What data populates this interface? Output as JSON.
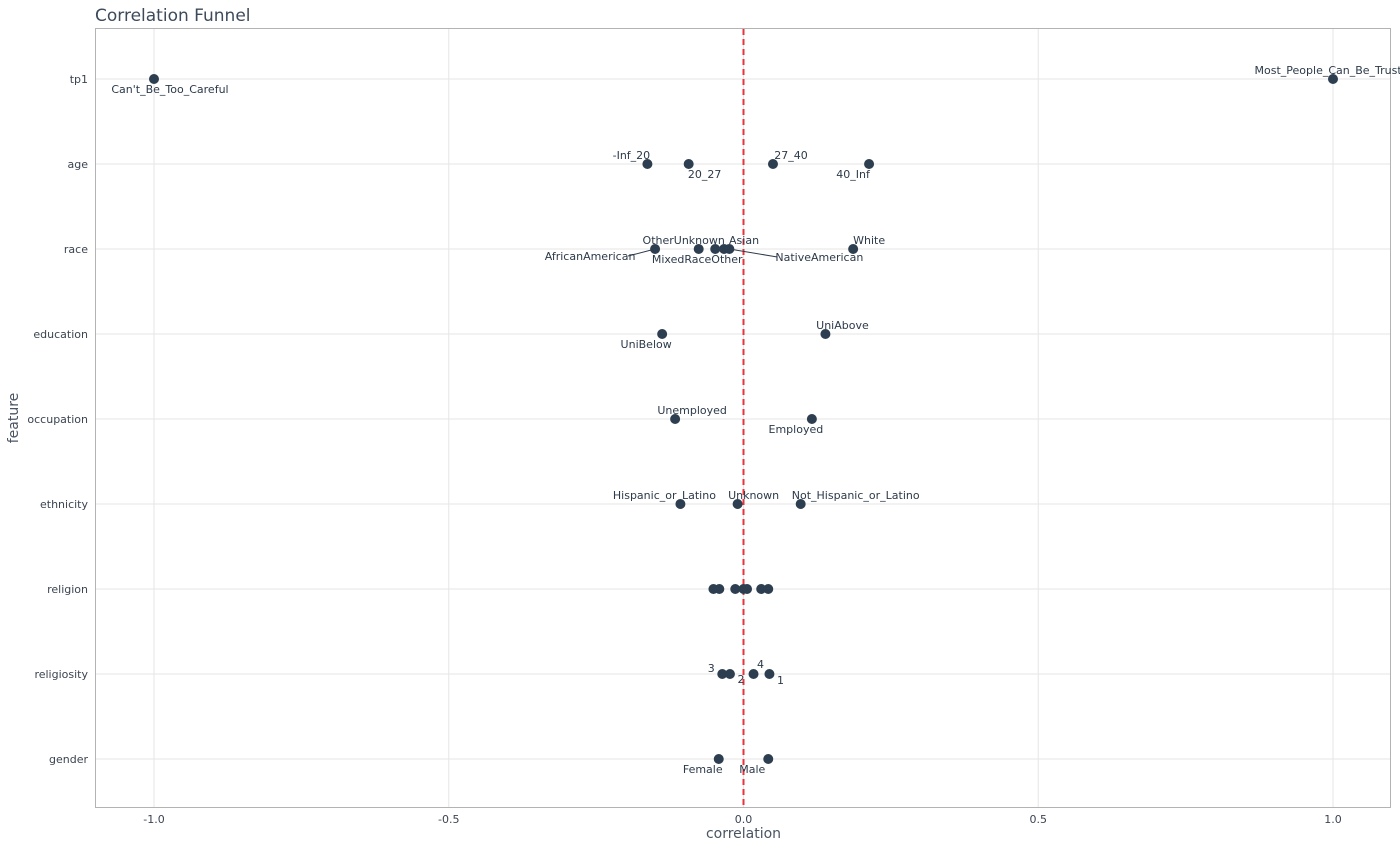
{
  "chart_data": {
    "type": "scatter",
    "title": "Correlation Funnel",
    "xlabel": "correlation",
    "ylabel": "feature",
    "xlim": [
      -1.1,
      1.1
    ],
    "x_ticks": [
      -1.0,
      -0.5,
      0.0,
      0.5,
      1.0
    ],
    "x_tick_labels": [
      "-1.0",
      "-0.5",
      "0.0",
      "0.5",
      "1.0"
    ],
    "features": [
      "tp1",
      "age",
      "race",
      "education",
      "occupation",
      "ethnicity",
      "religion",
      "religiosity",
      "gender"
    ],
    "reference_line": {
      "x": 0.0,
      "style": "dashed",
      "color": "#e8323c"
    },
    "point_color": "#2c3e50",
    "grid": true,
    "points": [
      {
        "feature": "tp1",
        "x": -1.0,
        "label": "Can't_Be_Too_Careful"
      },
      {
        "feature": "tp1",
        "x": 1.0,
        "label": "Most_People_Can_Be_Trusted"
      },
      {
        "feature": "age",
        "x": -0.163,
        "label": "-Inf_20"
      },
      {
        "feature": "age",
        "x": -0.093,
        "label": "20_27"
      },
      {
        "feature": "age",
        "x": 0.05,
        "label": "27_40"
      },
      {
        "feature": "age",
        "x": 0.213,
        "label": "40_Inf"
      },
      {
        "feature": "race",
        "x": -0.15,
        "label": "AfricanAmerican"
      },
      {
        "feature": "race",
        "x": -0.076,
        "label": "OtherUnknown"
      },
      {
        "feature": "race",
        "x": -0.048,
        "label": "MixedRaceOther"
      },
      {
        "feature": "race",
        "x": -0.033,
        "label": "Asian"
      },
      {
        "feature": "race",
        "x": -0.024,
        "label": "NativeAmerican"
      },
      {
        "feature": "race",
        "x": 0.186,
        "label": "White"
      },
      {
        "feature": "education",
        "x": -0.138,
        "label": "UniBelow"
      },
      {
        "feature": "education",
        "x": 0.139,
        "label": "UniAbove"
      },
      {
        "feature": "occupation",
        "x": -0.116,
        "label": "Unemployed"
      },
      {
        "feature": "occupation",
        "x": 0.116,
        "label": "Employed"
      },
      {
        "feature": "ethnicity",
        "x": -0.107,
        "label": "Hispanic_or_Latino"
      },
      {
        "feature": "ethnicity",
        "x": -0.01,
        "label": "Unknown"
      },
      {
        "feature": "ethnicity",
        "x": 0.097,
        "label": "Not_Hispanic_or_Latino"
      },
      {
        "feature": "religion",
        "x": -0.051,
        "label": ""
      },
      {
        "feature": "religion",
        "x": -0.041,
        "label": ""
      },
      {
        "feature": "religion",
        "x": -0.014,
        "label": ""
      },
      {
        "feature": "religion",
        "x": 0.0,
        "label": ""
      },
      {
        "feature": "religion",
        "x": 0.006,
        "label": ""
      },
      {
        "feature": "religion",
        "x": 0.03,
        "label": ""
      },
      {
        "feature": "religion",
        "x": 0.042,
        "label": ""
      },
      {
        "feature": "religiosity",
        "x": -0.036,
        "label": "3"
      },
      {
        "feature": "religiosity",
        "x": -0.023,
        "label": "2"
      },
      {
        "feature": "religiosity",
        "x": 0.017,
        "label": "4"
      },
      {
        "feature": "religiosity",
        "x": 0.044,
        "label": "1"
      },
      {
        "feature": "gender",
        "x": -0.042,
        "label": "Female"
      },
      {
        "feature": "gender",
        "x": 0.042,
        "label": "Male"
      }
    ]
  }
}
